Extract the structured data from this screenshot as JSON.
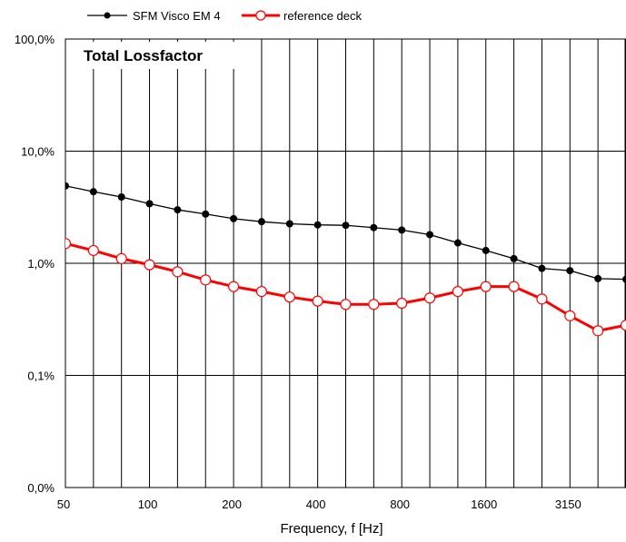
{
  "chart_data": {
    "type": "line",
    "title": "Total Lossfactor",
    "xlabel": "Frequency, f [Hz]",
    "ylabel": "",
    "x_scale": "log",
    "y_scale": "log",
    "grid": true,
    "legend_position": "top",
    "x_tick_labels": [
      "50",
      "100",
      "200",
      "400",
      "800",
      "1600",
      "3150"
    ],
    "y_tick_labels": [
      "0,0%",
      "0,1%",
      "1,0%",
      "10,0%",
      "100,0%"
    ],
    "x": [
      50,
      63,
      80,
      100,
      125,
      160,
      200,
      250,
      315,
      400,
      500,
      630,
      800,
      1000,
      1250,
      1600,
      2000,
      2500,
      3150,
      4000,
      5000
    ],
    "series": [
      {
        "name": "SFM Visco EM 4",
        "color": "#000000",
        "marker": "filled-circle",
        "values": [
          4.9,
          4.35,
          3.9,
          3.4,
          3.0,
          2.75,
          2.5,
          2.35,
          2.25,
          2.2,
          2.18,
          2.08,
          1.98,
          1.8,
          1.52,
          1.3,
          1.1,
          0.9,
          0.86,
          0.73,
          0.72
        ]
      },
      {
        "name": "reference deck",
        "color": "#ff0000",
        "marker": "open-circle",
        "values": [
          1.5,
          1.3,
          1.1,
          0.97,
          0.84,
          0.71,
          0.62,
          0.56,
          0.5,
          0.46,
          0.43,
          0.43,
          0.44,
          0.49,
          0.56,
          0.62,
          0.62,
          0.48,
          0.34,
          0.25,
          0.28
        ]
      }
    ],
    "y_unit": "%"
  }
}
